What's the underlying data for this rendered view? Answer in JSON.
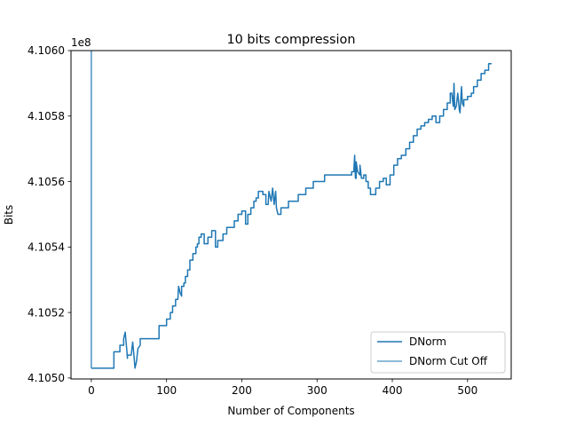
{
  "chart_data": {
    "type": "line",
    "title": "10 bits compression",
    "xlabel": "Number of Components",
    "ylabel": "Bits",
    "offset_text": "1e8",
    "xlim": [
      -27,
      558
    ],
    "ylim": [
      410499700,
      410600000
    ],
    "xticks": [
      0,
      100,
      200,
      300,
      400,
      500
    ],
    "yticks": [
      {
        "value": 410500000,
        "label": "4.1050"
      },
      {
        "value": 410520000,
        "label": "4.1052"
      },
      {
        "value": 410540000,
        "label": "4.1054"
      },
      {
        "value": 410560000,
        "label": "4.1056"
      },
      {
        "value": 410580000,
        "label": "4.1058"
      },
      {
        "value": 410600000,
        "label": "4.1060"
      }
    ],
    "grid": false,
    "legend_position": "lower-right",
    "color": "#1f77b4",
    "series": [
      {
        "name": "DNorm",
        "x": [
          0,
          30,
          30,
          38,
          38,
          43,
          43,
          45,
          47,
          48,
          48,
          53,
          55,
          57,
          58,
          60,
          62,
          65,
          65,
          90,
          90,
          100,
          100,
          105,
          105,
          108,
          108,
          112,
          112,
          115,
          116,
          118,
          120,
          120,
          123,
          123,
          125,
          125,
          128,
          128,
          131,
          131,
          135,
          135,
          139,
          139,
          141,
          141,
          143,
          143,
          146,
          146,
          150,
          150,
          155,
          155,
          160,
          160,
          165,
          165,
          168,
          168,
          175,
          175,
          180,
          180,
          190,
          190,
          195,
          195,
          200,
          200,
          205,
          205,
          208,
          208,
          212,
          212,
          216,
          216,
          219,
          219,
          222,
          222,
          228,
          228,
          232,
          232,
          235,
          236,
          238,
          239,
          241,
          243,
          245,
          246,
          248,
          248,
          252,
          252,
          262,
          262,
          275,
          275,
          285,
          285,
          295,
          295,
          310,
          310,
          318,
          318,
          323,
          323,
          328,
          328,
          346,
          346,
          349,
          349,
          350,
          351,
          352,
          352,
          354,
          357,
          357,
          359,
          362,
          362,
          365,
          365,
          368,
          368,
          371,
          371,
          378,
          378,
          383,
          383,
          388,
          388,
          392,
          392,
          397,
          397,
          402,
          402,
          407,
          407,
          412,
          412,
          418,
          418,
          423,
          423,
          428,
          428,
          433,
          433,
          438,
          438,
          443,
          443,
          448,
          448,
          453,
          453,
          458,
          458,
          463,
          463,
          468,
          468,
          473,
          473,
          477,
          477,
          479,
          481,
          482,
          483,
          485,
          487,
          489,
          490,
          492,
          493,
          495,
          495,
          500,
          500,
          505,
          505,
          508,
          508,
          513,
          513,
          518,
          518,
          523,
          523,
          528,
          528,
          532
        ],
        "y": [
          410503000,
          410503000,
          410508000,
          410508000,
          410510000,
          410510000,
          410512000,
          410514000,
          410509000,
          410506000,
          410507000,
          410507000,
          410511000,
          410506000,
          410503000,
          410505000,
          410509000,
          410510000,
          410512000,
          410512000,
          410516000,
          410516000,
          410518000,
          410518000,
          410520000,
          410520000,
          410522000,
          410522000,
          410524000,
          410524000,
          410528000,
          410526000,
          410525000,
          410528000,
          410528000,
          410529000,
          410529000,
          410531000,
          410531000,
          410533000,
          410533000,
          410536000,
          410536000,
          410538000,
          410538000,
          410540000,
          410540000,
          410541000,
          410541000,
          410543000,
          410543000,
          410544000,
          410544000,
          410541000,
          410541000,
          410543000,
          410543000,
          410545000,
          410545000,
          410540000,
          410540000,
          410542000,
          410542000,
          410544000,
          410544000,
          410546000,
          410546000,
          410548000,
          410548000,
          410550000,
          410550000,
          410551000,
          410551000,
          410547000,
          410547000,
          410550000,
          410550000,
          410552000,
          410552000,
          410554000,
          410554000,
          410555000,
          410555000,
          410557000,
          410557000,
          410556000,
          410556000,
          410553000,
          410553000,
          410557000,
          410555000,
          410554000,
          410558000,
          410553000,
          410557000,
          410552000,
          410550000,
          410550000,
          410550000,
          410552000,
          410552000,
          410554000,
          410554000,
          410556000,
          410556000,
          410558000,
          410558000,
          410560000,
          410560000,
          410562000,
          410562000,
          410562000,
          410562000,
          410562000,
          410562000,
          410562000,
          410562000,
          410563000,
          410563000,
          410564000,
          410568000,
          410561000,
          410561000,
          410566000,
          410563000,
          410562000,
          410565000,
          410561000,
          410561000,
          410562000,
          410562000,
          410560000,
          410560000,
          410558000,
          410558000,
          410556000,
          410556000,
          410558000,
          410558000,
          410560000,
          410560000,
          410561000,
          410561000,
          410559000,
          410559000,
          410562000,
          410562000,
          410565000,
          410565000,
          410567000,
          410567000,
          410568000,
          410568000,
          410570000,
          410570000,
          410572000,
          410572000,
          410574000,
          410574000,
          410576000,
          410576000,
          410577000,
          410577000,
          410578000,
          410578000,
          410579000,
          410579000,
          410580000,
          410580000,
          410578000,
          410578000,
          410580000,
          410580000,
          410582000,
          410582000,
          410584000,
          410584000,
          410587000,
          410587000,
          410583000,
          410590000,
          410582000,
          410583000,
          410587000,
          410582000,
          410581000,
          410589000,
          410584000,
          410583000,
          410585000,
          410585000,
          410586000,
          410586000,
          410587000,
          410587000,
          410589000,
          410589000,
          410591000,
          410591000,
          410593000,
          410593000,
          410594000,
          410594000,
          410596000,
          410596000
        ]
      },
      {
        "name": "DNorm Cut Off",
        "x": [
          0,
          0
        ],
        "y": [
          410503000,
          410600000
        ]
      }
    ]
  }
}
